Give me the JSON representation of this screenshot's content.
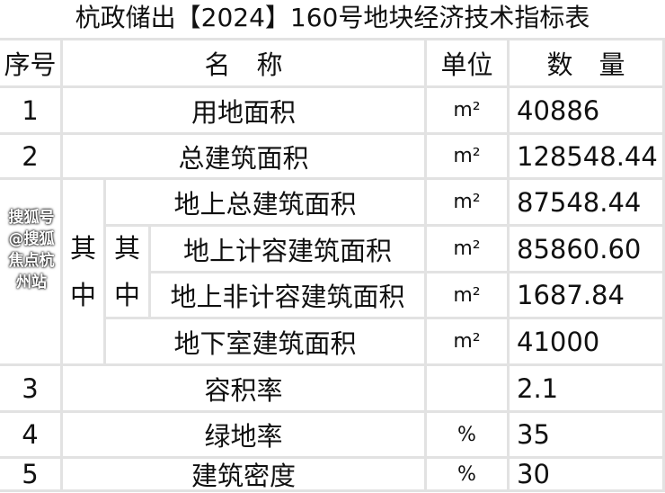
{
  "title": "杭政储出【2024】160号地块经济技术指标表",
  "header": {
    "seq": "序号",
    "name": "名　称",
    "unit": "单位",
    "qty": "数　量"
  },
  "rows": [
    {
      "seq": "1",
      "name": "用地面积",
      "unit": "m²",
      "qty": "40886"
    },
    {
      "seq": "2",
      "name": "总建筑面积",
      "unit": "m²",
      "qty": "128548.44"
    },
    {
      "name": "地上总建筑面积",
      "unit": "m²",
      "qty": "87548.44"
    },
    {
      "name": "地上计容建筑面积",
      "unit": "m²",
      "qty": "85860.60"
    },
    {
      "name": "地上非计容建筑面积",
      "unit": "m²",
      "qty": "1687.84"
    },
    {
      "name": "地下室建筑面积",
      "unit": "m²",
      "qty": "41000"
    },
    {
      "seq": "3",
      "name": "容积率",
      "unit": "",
      "qty": "2.1"
    },
    {
      "seq": "4",
      "name": "绿地率",
      "unit": "%",
      "qty": "35"
    },
    {
      "seq": "5",
      "name": "建筑密度",
      "unit": "%",
      "qty": "30"
    }
  ],
  "group_outer": {
    "a": "其",
    "b": "中"
  },
  "group_inner": {
    "a": "其",
    "b": "中"
  },
  "watermark": "搜狐号@搜狐焦点杭州站"
}
